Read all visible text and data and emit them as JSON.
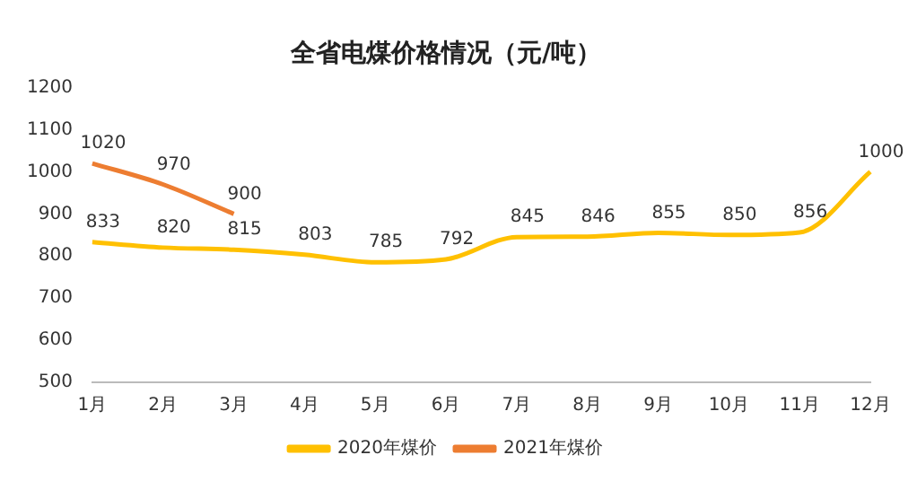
{
  "chart_data": {
    "type": "line",
    "title": "全省电煤价格情况（元/吨）",
    "categories": [
      "1月",
      "2月",
      "3月",
      "4月",
      "5月",
      "6月",
      "7月",
      "8月",
      "9月",
      "10月",
      "11月",
      "12月"
    ],
    "series": [
      {
        "name": "2020年煤价",
        "color": "#ffc000",
        "values": [
          833,
          820,
          815,
          803,
          785,
          792,
          845,
          846,
          855,
          850,
          856,
          1000
        ]
      },
      {
        "name": "2021年煤价",
        "color": "#ed7d31",
        "values": [
          1020,
          970,
          900,
          null,
          null,
          null,
          null,
          null,
          null,
          null,
          null,
          null
        ]
      }
    ],
    "ylim": [
      500,
      1200
    ],
    "yticks": [
      500,
      600,
      700,
      800,
      900,
      1000,
      1100,
      1200
    ],
    "grid": false,
    "legend": "bottom",
    "data_labels": true,
    "marker": "none",
    "line_style": "solid"
  }
}
